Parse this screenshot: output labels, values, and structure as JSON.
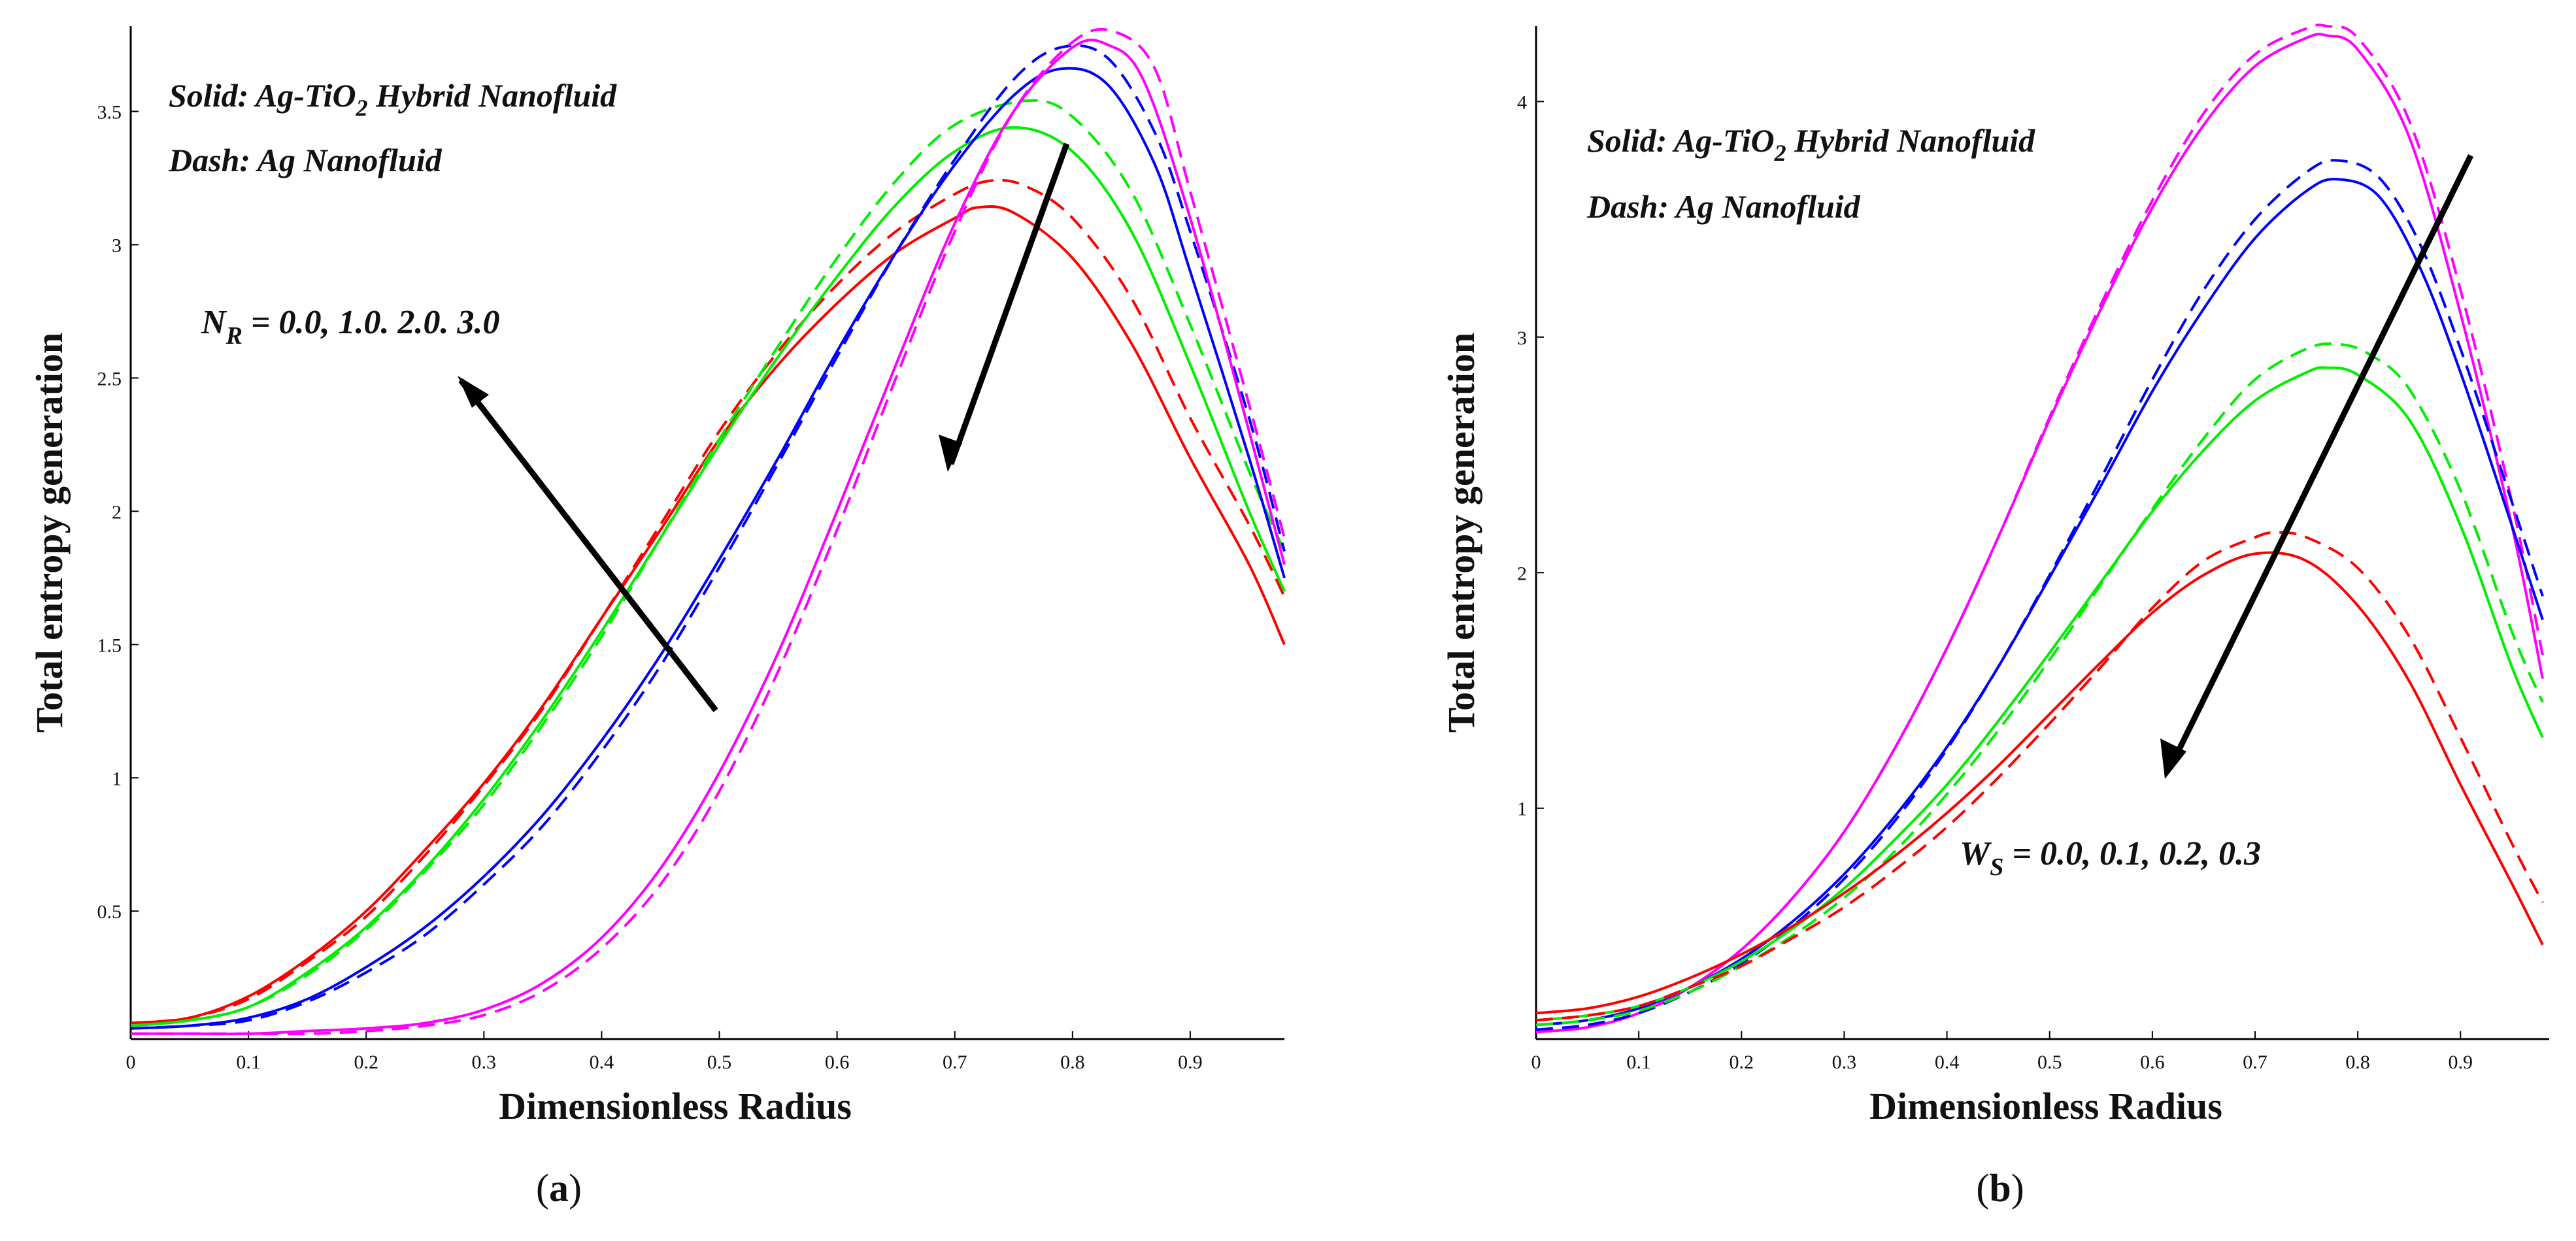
{
  "chart_data": [
    {
      "type": "line",
      "panel_label": "a",
      "xlabel": "Dimensionless Radius",
      "ylabel": "Total entropy generation",
      "xlim": [
        0,
        0.98
      ],
      "ylim": [
        0.02,
        3.82
      ],
      "xticks": [
        0,
        0.1,
        0.2,
        0.3,
        0.4,
        0.5,
        0.6,
        0.7,
        0.8,
        0.9
      ],
      "xtick_labels": [
        "0",
        "0.1",
        "0.2",
        "0.3",
        "0.4",
        "0.5",
        "0.6",
        "0.7",
        "0.8",
        "0.9"
      ],
      "yticks": [
        0.5,
        1,
        1.5,
        2,
        2.5,
        3,
        3.5
      ],
      "ytick_labels": [
        "0.5",
        "1",
        "1.5",
        "2",
        "2.5",
        "3",
        "3.5"
      ],
      "legend_lines": {
        "solid_prefix": "Solid: Ag-TiO",
        "solid_sub": "2",
        "solid_suffix": " Hybrid Nanofluid",
        "dash": "Dash: Ag Nanofluid"
      },
      "annotation": {
        "symbol": "N",
        "sub": "R",
        "text": " = 0.0, 1.0. 2.0. 3.0"
      },
      "series": [
        {
          "name": "N_R = 0.0 (hybrid)",
          "color": "#ff0000",
          "style": "solid",
          "x": [
            0,
            0.05,
            0.1,
            0.15,
            0.2,
            0.25,
            0.3,
            0.35,
            0.4,
            0.45,
            0.5,
            0.55,
            0.6,
            0.65,
            0.7,
            0.72,
            0.75,
            0.8,
            0.85,
            0.9,
            0.95,
            0.98
          ],
          "y": [
            0.08,
            0.1,
            0.18,
            0.32,
            0.5,
            0.73,
            0.98,
            1.27,
            1.6,
            1.93,
            2.27,
            2.55,
            2.78,
            2.97,
            3.1,
            3.14,
            3.12,
            2.95,
            2.63,
            2.2,
            1.8,
            1.5
          ]
        },
        {
          "name": "N_R = 0.0 (Ag)",
          "color": "#ff0000",
          "style": "dash",
          "x": [
            0,
            0.05,
            0.1,
            0.15,
            0.2,
            0.25,
            0.3,
            0.35,
            0.4,
            0.45,
            0.5,
            0.55,
            0.6,
            0.65,
            0.7,
            0.73,
            0.76,
            0.8,
            0.85,
            0.9,
            0.95,
            0.98
          ],
          "y": [
            0.08,
            0.1,
            0.17,
            0.31,
            0.48,
            0.71,
            0.97,
            1.26,
            1.6,
            1.95,
            2.3,
            2.6,
            2.85,
            3.05,
            3.19,
            3.24,
            3.22,
            3.1,
            2.8,
            2.35,
            1.95,
            1.68
          ]
        },
        {
          "name": "N_R = 1.0 (hybrid)",
          "color": "#00ee00",
          "style": "solid",
          "x": [
            0,
            0.05,
            0.1,
            0.15,
            0.2,
            0.25,
            0.3,
            0.35,
            0.4,
            0.45,
            0.5,
            0.55,
            0.6,
            0.65,
            0.7,
            0.75,
            0.8,
            0.85,
            0.9,
            0.95,
            0.98
          ],
          "y": [
            0.07,
            0.09,
            0.14,
            0.27,
            0.44,
            0.66,
            0.92,
            1.22,
            1.55,
            1.9,
            2.25,
            2.58,
            2.88,
            3.15,
            3.35,
            3.44,
            3.35,
            3.05,
            2.55,
            2.0,
            1.7
          ]
        },
        {
          "name": "N_R = 1.0 (Ag)",
          "color": "#00ee00",
          "style": "dash",
          "x": [
            0,
            0.05,
            0.1,
            0.15,
            0.2,
            0.25,
            0.3,
            0.35,
            0.4,
            0.45,
            0.5,
            0.55,
            0.6,
            0.65,
            0.7,
            0.76,
            0.8,
            0.85,
            0.9,
            0.95,
            0.98
          ],
          "y": [
            0.07,
            0.09,
            0.14,
            0.26,
            0.43,
            0.65,
            0.9,
            1.2,
            1.53,
            1.9,
            2.27,
            2.62,
            2.95,
            3.24,
            3.45,
            3.54,
            3.48,
            3.2,
            2.7,
            2.15,
            1.85
          ]
        },
        {
          "name": "N_R = 2.0 (hybrid)",
          "color": "#0000ff",
          "style": "solid",
          "x": [
            0,
            0.05,
            0.1,
            0.15,
            0.2,
            0.25,
            0.3,
            0.35,
            0.4,
            0.45,
            0.5,
            0.55,
            0.6,
            0.65,
            0.7,
            0.75,
            0.79,
            0.83,
            0.87,
            0.9,
            0.95,
            0.98
          ],
          "y": [
            0.06,
            0.07,
            0.1,
            0.17,
            0.29,
            0.44,
            0.63,
            0.86,
            1.14,
            1.46,
            1.82,
            2.2,
            2.6,
            2.97,
            3.3,
            3.56,
            3.66,
            3.6,
            3.3,
            2.9,
            2.2,
            1.75
          ]
        },
        {
          "name": "N_R = 2.0 (Ag)",
          "color": "#0000ff",
          "style": "dash",
          "x": [
            0,
            0.05,
            0.1,
            0.15,
            0.2,
            0.25,
            0.3,
            0.35,
            0.4,
            0.45,
            0.5,
            0.55,
            0.6,
            0.65,
            0.7,
            0.75,
            0.79,
            0.83,
            0.87,
            0.9,
            0.95,
            0.98
          ],
          "y": [
            0.06,
            0.07,
            0.09,
            0.16,
            0.27,
            0.41,
            0.6,
            0.82,
            1.1,
            1.42,
            1.79,
            2.18,
            2.58,
            2.97,
            3.32,
            3.62,
            3.74,
            3.7,
            3.42,
            3.05,
            2.35,
            1.85
          ]
        },
        {
          "name": "N_R = 3.0 (hybrid)",
          "color": "#ff00ff",
          "style": "solid",
          "x": [
            0,
            0.05,
            0.1,
            0.15,
            0.2,
            0.25,
            0.3,
            0.35,
            0.4,
            0.45,
            0.5,
            0.55,
            0.6,
            0.65,
            0.7,
            0.75,
            0.8,
            0.83,
            0.86,
            0.9,
            0.95,
            0.98
          ],
          "y": [
            0.04,
            0.04,
            0.04,
            0.05,
            0.06,
            0.08,
            0.13,
            0.23,
            0.4,
            0.66,
            1.02,
            1.47,
            2.0,
            2.55,
            3.08,
            3.5,
            3.74,
            3.75,
            3.62,
            3.1,
            2.3,
            1.8
          ]
        },
        {
          "name": "N_R = 3.0 (Ag)",
          "color": "#ff00ff",
          "style": "dash",
          "x": [
            0,
            0.05,
            0.1,
            0.15,
            0.2,
            0.25,
            0.3,
            0.35,
            0.4,
            0.45,
            0.5,
            0.55,
            0.6,
            0.65,
            0.7,
            0.75,
            0.8,
            0.835,
            0.87,
            0.9,
            0.95,
            0.98
          ],
          "y": [
            0.04,
            0.04,
            0.04,
            0.04,
            0.05,
            0.07,
            0.11,
            0.2,
            0.36,
            0.6,
            0.95,
            1.4,
            1.93,
            2.5,
            3.05,
            3.5,
            3.76,
            3.8,
            3.66,
            3.2,
            2.4,
            1.9
          ]
        }
      ]
    },
    {
      "type": "line",
      "panel_label": "b",
      "xlabel": "Dimensionless Radius",
      "ylabel": "Total entropy generation",
      "xlim": [
        0,
        0.98
      ],
      "ylim": [
        0.02,
        4.32
      ],
      "xticks": [
        0,
        0.1,
        0.2,
        0.3,
        0.4,
        0.5,
        0.6,
        0.7,
        0.8,
        0.9
      ],
      "xtick_labels": [
        "0",
        "0.1",
        "0.2",
        "0.3",
        "0.4",
        "0.5",
        "0.6",
        "0.7",
        "0.8",
        "0.9"
      ],
      "yticks": [
        1,
        2,
        3,
        4
      ],
      "ytick_labels": [
        "1",
        "2",
        "3",
        "4"
      ],
      "legend_lines": {
        "solid_prefix": "Solid: Ag-TiO",
        "solid_sub": "2",
        "solid_suffix": " Hybrid Nanofluid",
        "dash": "Dash: Ag Nanofluid"
      },
      "annotation": {
        "symbol": "W",
        "sub": "S",
        "text": " = 0.0, 0.1, 0.2, 0.3"
      },
      "series": [
        {
          "name": "W_S = 0.0 (hybrid)",
          "color": "#ff00ff",
          "style": "solid",
          "x": [
            0,
            0.05,
            0.1,
            0.15,
            0.2,
            0.25,
            0.3,
            0.35,
            0.4,
            0.45,
            0.5,
            0.55,
            0.6,
            0.65,
            0.7,
            0.75,
            0.77,
            0.8,
            0.85,
            0.9,
            0.95,
            0.98
          ],
          "y": [
            0.05,
            0.07,
            0.13,
            0.24,
            0.4,
            0.62,
            0.9,
            1.26,
            1.68,
            2.15,
            2.65,
            3.12,
            3.55,
            3.9,
            4.15,
            4.27,
            4.28,
            4.22,
            3.85,
            3.1,
            2.2,
            1.55
          ]
        },
        {
          "name": "W_S = 0.0 (Ag)",
          "color": "#ff00ff",
          "style": "dash",
          "x": [
            0,
            0.05,
            0.1,
            0.15,
            0.2,
            0.25,
            0.3,
            0.35,
            0.4,
            0.45,
            0.5,
            0.55,
            0.6,
            0.65,
            0.7,
            0.75,
            0.77,
            0.8,
            0.85,
            0.9,
            0.95,
            0.98
          ],
          "y": [
            0.05,
            0.07,
            0.13,
            0.24,
            0.4,
            0.62,
            0.9,
            1.26,
            1.68,
            2.15,
            2.66,
            3.14,
            3.58,
            3.95,
            4.2,
            4.31,
            4.32,
            4.27,
            3.92,
            3.2,
            2.3,
            1.65
          ]
        },
        {
          "name": "W_S = 0.1 (hybrid)",
          "color": "#0000ff",
          "style": "solid",
          "x": [
            0,
            0.05,
            0.1,
            0.15,
            0.2,
            0.25,
            0.3,
            0.35,
            0.4,
            0.45,
            0.5,
            0.55,
            0.6,
            0.65,
            0.7,
            0.75,
            0.78,
            0.82,
            0.86,
            0.9,
            0.95,
            0.98
          ],
          "y": [
            0.08,
            0.1,
            0.15,
            0.24,
            0.36,
            0.52,
            0.72,
            0.97,
            1.26,
            1.6,
            1.98,
            2.37,
            2.77,
            3.12,
            3.42,
            3.62,
            3.67,
            3.6,
            3.3,
            2.85,
            2.2,
            1.8
          ]
        },
        {
          "name": "W_S = 0.1 (Ag)",
          "color": "#0000ff",
          "style": "dash",
          "x": [
            0,
            0.05,
            0.1,
            0.15,
            0.2,
            0.25,
            0.3,
            0.35,
            0.4,
            0.45,
            0.5,
            0.55,
            0.6,
            0.65,
            0.7,
            0.75,
            0.78,
            0.82,
            0.86,
            0.9,
            0.95,
            0.98
          ],
          "y": [
            0.06,
            0.08,
            0.13,
            0.22,
            0.34,
            0.5,
            0.7,
            0.95,
            1.25,
            1.6,
            1.99,
            2.4,
            2.82,
            3.2,
            3.5,
            3.7,
            3.75,
            3.68,
            3.4,
            2.95,
            2.3,
            1.9
          ]
        },
        {
          "name": "W_S = 0.2 (hybrid)",
          "color": "#00ee00",
          "style": "solid",
          "x": [
            0,
            0.05,
            0.1,
            0.15,
            0.2,
            0.25,
            0.3,
            0.35,
            0.4,
            0.45,
            0.5,
            0.55,
            0.6,
            0.65,
            0.7,
            0.75,
            0.77,
            0.8,
            0.85,
            0.9,
            0.95,
            0.98
          ],
          "y": [
            0.1,
            0.12,
            0.16,
            0.24,
            0.35,
            0.49,
            0.66,
            0.87,
            1.1,
            1.37,
            1.66,
            1.96,
            2.26,
            2.52,
            2.73,
            2.85,
            2.87,
            2.84,
            2.65,
            2.2,
            1.6,
            1.3
          ]
        },
        {
          "name": "W_S = 0.2 (Ag)",
          "color": "#00ee00",
          "style": "dash",
          "x": [
            0,
            0.05,
            0.1,
            0.15,
            0.2,
            0.25,
            0.3,
            0.35,
            0.4,
            0.45,
            0.5,
            0.55,
            0.6,
            0.65,
            0.7,
            0.75,
            0.78,
            0.81,
            0.85,
            0.9,
            0.95,
            0.98
          ],
          "y": [
            0.08,
            0.1,
            0.14,
            0.22,
            0.33,
            0.46,
            0.62,
            0.82,
            1.06,
            1.33,
            1.63,
            1.95,
            2.27,
            2.57,
            2.82,
            2.95,
            2.97,
            2.93,
            2.78,
            2.35,
            1.75,
            1.45
          ]
        },
        {
          "name": "W_S = 0.3 (hybrid)",
          "color": "#ff0000",
          "style": "solid",
          "x": [
            0,
            0.05,
            0.1,
            0.15,
            0.2,
            0.25,
            0.3,
            0.35,
            0.4,
            0.45,
            0.5,
            0.55,
            0.6,
            0.65,
            0.7,
            0.75,
            0.8,
            0.85,
            0.9,
            0.95,
            0.98
          ],
          "y": [
            0.13,
            0.15,
            0.2,
            0.28,
            0.38,
            0.5,
            0.64,
            0.8,
            0.98,
            1.18,
            1.4,
            1.62,
            1.83,
            1.99,
            2.08,
            2.05,
            1.86,
            1.54,
            1.1,
            0.68,
            0.42
          ]
        },
        {
          "name": "W_S = 0.3 (Ag)",
          "color": "#ff0000",
          "style": "dash",
          "x": [
            0,
            0.05,
            0.1,
            0.15,
            0.2,
            0.25,
            0.3,
            0.35,
            0.4,
            0.45,
            0.5,
            0.55,
            0.6,
            0.65,
            0.7,
            0.72,
            0.75,
            0.8,
            0.85,
            0.9,
            0.95,
            0.98
          ],
          "y": [
            0.1,
            0.12,
            0.16,
            0.24,
            0.33,
            0.45,
            0.58,
            0.74,
            0.92,
            1.13,
            1.36,
            1.6,
            1.85,
            2.05,
            2.15,
            2.17,
            2.15,
            2.02,
            1.73,
            1.3,
            0.85,
            0.6
          ]
        }
      ]
    }
  ],
  "colors": {
    "axis": "#000000",
    "arrow": "#000000"
  }
}
